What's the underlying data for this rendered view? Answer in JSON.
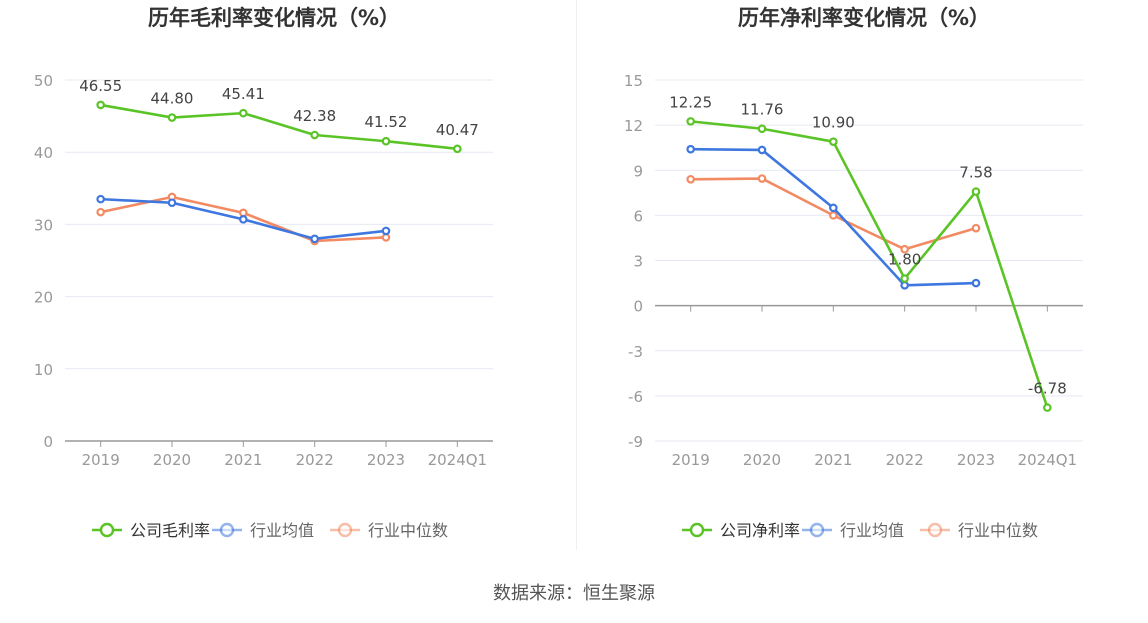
{
  "source": "数据来源：恒生聚源",
  "legend_labels": [
    "公司毛利率",
    "行业均值",
    "行业中位数"
  ],
  "colors": {
    "company": "#5ac426",
    "avg": "#3f77e0",
    "median": "#f28a63",
    "grid": "#e6e9f2",
    "axis": "#999999",
    "tick_text": "#999999",
    "label_text": "#444444",
    "title": "#333333"
  },
  "chart_data": [
    {
      "type": "line",
      "title": "历年毛利率变化情况（%）",
      "categories": [
        "2019",
        "2020",
        "2021",
        "2022",
        "2023",
        "2024Q1"
      ],
      "ylim": [
        0,
        50
      ],
      "yticks": [
        0,
        10,
        20,
        30,
        40,
        50
      ],
      "grid": true,
      "legend_position": "bottom-center",
      "series": [
        {
          "name": "公司毛利率",
          "values": [
            46.55,
            44.8,
            45.41,
            42.38,
            41.52,
            40.47
          ],
          "labels": [
            "46.55",
            "44.80",
            "45.41",
            "42.38",
            "41.52",
            "40.47"
          ]
        },
        {
          "name": "行业均值",
          "values": [
            33.5,
            33.0,
            30.7,
            28.0,
            29.1,
            null
          ]
        },
        {
          "name": "行业中位数",
          "values": [
            31.7,
            33.8,
            31.6,
            27.7,
            28.2,
            null
          ]
        }
      ]
    },
    {
      "type": "line",
      "title": "历年净利率变化情况（%）",
      "categories": [
        "2019",
        "2020",
        "2021",
        "2022",
        "2023",
        "2024Q1"
      ],
      "ylim": [
        -9,
        15
      ],
      "yticks": [
        -9,
        -6,
        -3,
        0,
        3,
        6,
        9,
        12,
        15
      ],
      "grid": true,
      "legend_position": "bottom-center",
      "series": [
        {
          "name": "公司净利率",
          "values": [
            12.25,
            11.76,
            10.9,
            1.8,
            7.58,
            -6.78
          ],
          "labels": [
            "12.25",
            "11.76",
            "10.90",
            "1.80",
            "7.58",
            "-6.78"
          ]
        },
        {
          "name": "行业均值",
          "values": [
            10.4,
            10.35,
            6.5,
            1.35,
            1.5,
            null
          ]
        },
        {
          "name": "行业中位数",
          "values": [
            8.4,
            8.45,
            6.0,
            3.75,
            5.15,
            null
          ]
        }
      ]
    }
  ]
}
